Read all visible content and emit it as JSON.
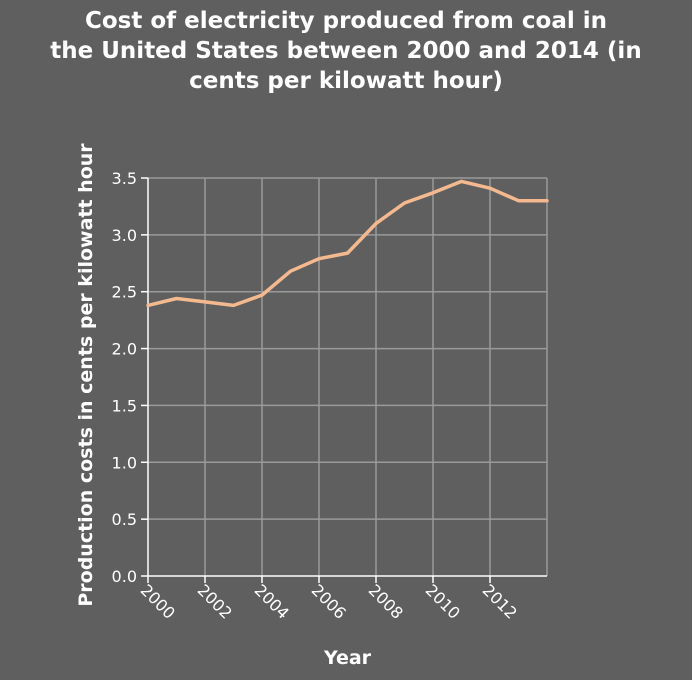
{
  "chart_data": {
    "type": "line",
    "title_lines": [
      "Cost of electricity produced from coal in",
      "the United States between 2000 and 2014 (in",
      "cents per kilowatt hour)"
    ],
    "xlabel": "Year",
    "ylabel": "Production costs in cents per kilowatt hour",
    "x": [
      2000,
      2001,
      2002,
      2003,
      2004,
      2005,
      2006,
      2007,
      2008,
      2009,
      2010,
      2011,
      2012,
      2013,
      2014
    ],
    "series": [
      {
        "values": [
          2.38,
          2.44,
          2.41,
          2.38,
          2.47,
          2.68,
          2.79,
          2.84,
          3.1,
          3.28,
          3.37,
          3.47,
          3.41,
          3.3,
          3.3
        ]
      }
    ],
    "xlim": [
      2000,
      2014
    ],
    "ylim": [
      0,
      3.5
    ],
    "x_ticks": [
      "2000",
      "2002",
      "2004",
      "2006",
      "2008",
      "2010",
      "2012"
    ],
    "y_ticks": [
      "0.0",
      "0.5",
      "1.0",
      "1.5",
      "2.0",
      "2.5",
      "3.0",
      "3.5"
    ],
    "grid": true,
    "line_color": "#f5b990",
    "grid_color": "#9a9a9a",
    "background": "#5f5f5f"
  }
}
